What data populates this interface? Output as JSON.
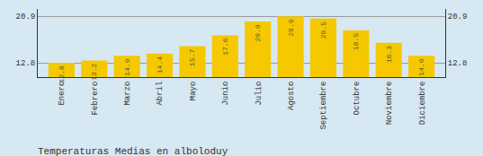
{
  "chart_data": {
    "type": "bar",
    "title": "Temperaturas Medias en alboloduy",
    "categories": [
      "Enero",
      "Febrero",
      "Marzo",
      "Abril",
      "Mayo",
      "Junio",
      "Julio",
      "Agosto",
      "Septiembre",
      "Octubre",
      "Noviembre",
      "Diciembre"
    ],
    "values": [
      12.8,
      13.2,
      14.0,
      14.4,
      15.7,
      17.6,
      20.0,
      20.9,
      20.5,
      18.5,
      16.3,
      14.0
    ],
    "value_labels": [
      "12.8",
      "13.2",
      "14.0",
      "14.4",
      "15.7",
      "17.6",
      "20.0",
      "20.9",
      "20.5",
      "18.5",
      "16.3",
      "14.0"
    ],
    "color": "#F5C800",
    "ylim": [
      10.3,
      22.2
    ],
    "yticks": [
      12.8,
      20.9
    ],
    "grid": true,
    "data_labels": true
  }
}
